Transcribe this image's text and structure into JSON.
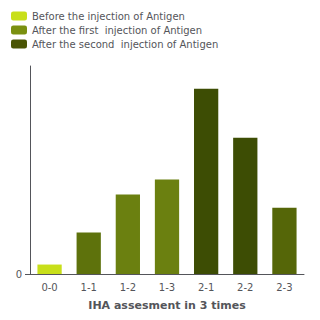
{
  "chart_data": {
    "type": "bar",
    "categories": [
      "0-0",
      "1-1",
      "1-2",
      "1-3",
      "2-1",
      "2-2",
      "2-3"
    ],
    "values": [
      0.5,
      2.2,
      4.2,
      5.0,
      9.8,
      7.2,
      3.5
    ],
    "colors": [
      "#c8df1a",
      "#5e720c",
      "#6b8010",
      "#6b8010",
      "#3d4d04",
      "#3d4d04",
      "#556608"
    ],
    "xlabel": "IHA assesment in 3 times",
    "ylim": [
      0,
      11
    ],
    "yticks": [
      0
    ],
    "grid": false,
    "legend": "upper left",
    "legend_entries": [
      {
        "name": "Before the injection of Antigen",
        "color": "#c8df1a"
      },
      {
        "name": "After the first  injection of Antigen",
        "color": "#7a9010"
      },
      {
        "name": "After the second  injection of Antigen",
        "color": "#4a5504"
      }
    ]
  }
}
